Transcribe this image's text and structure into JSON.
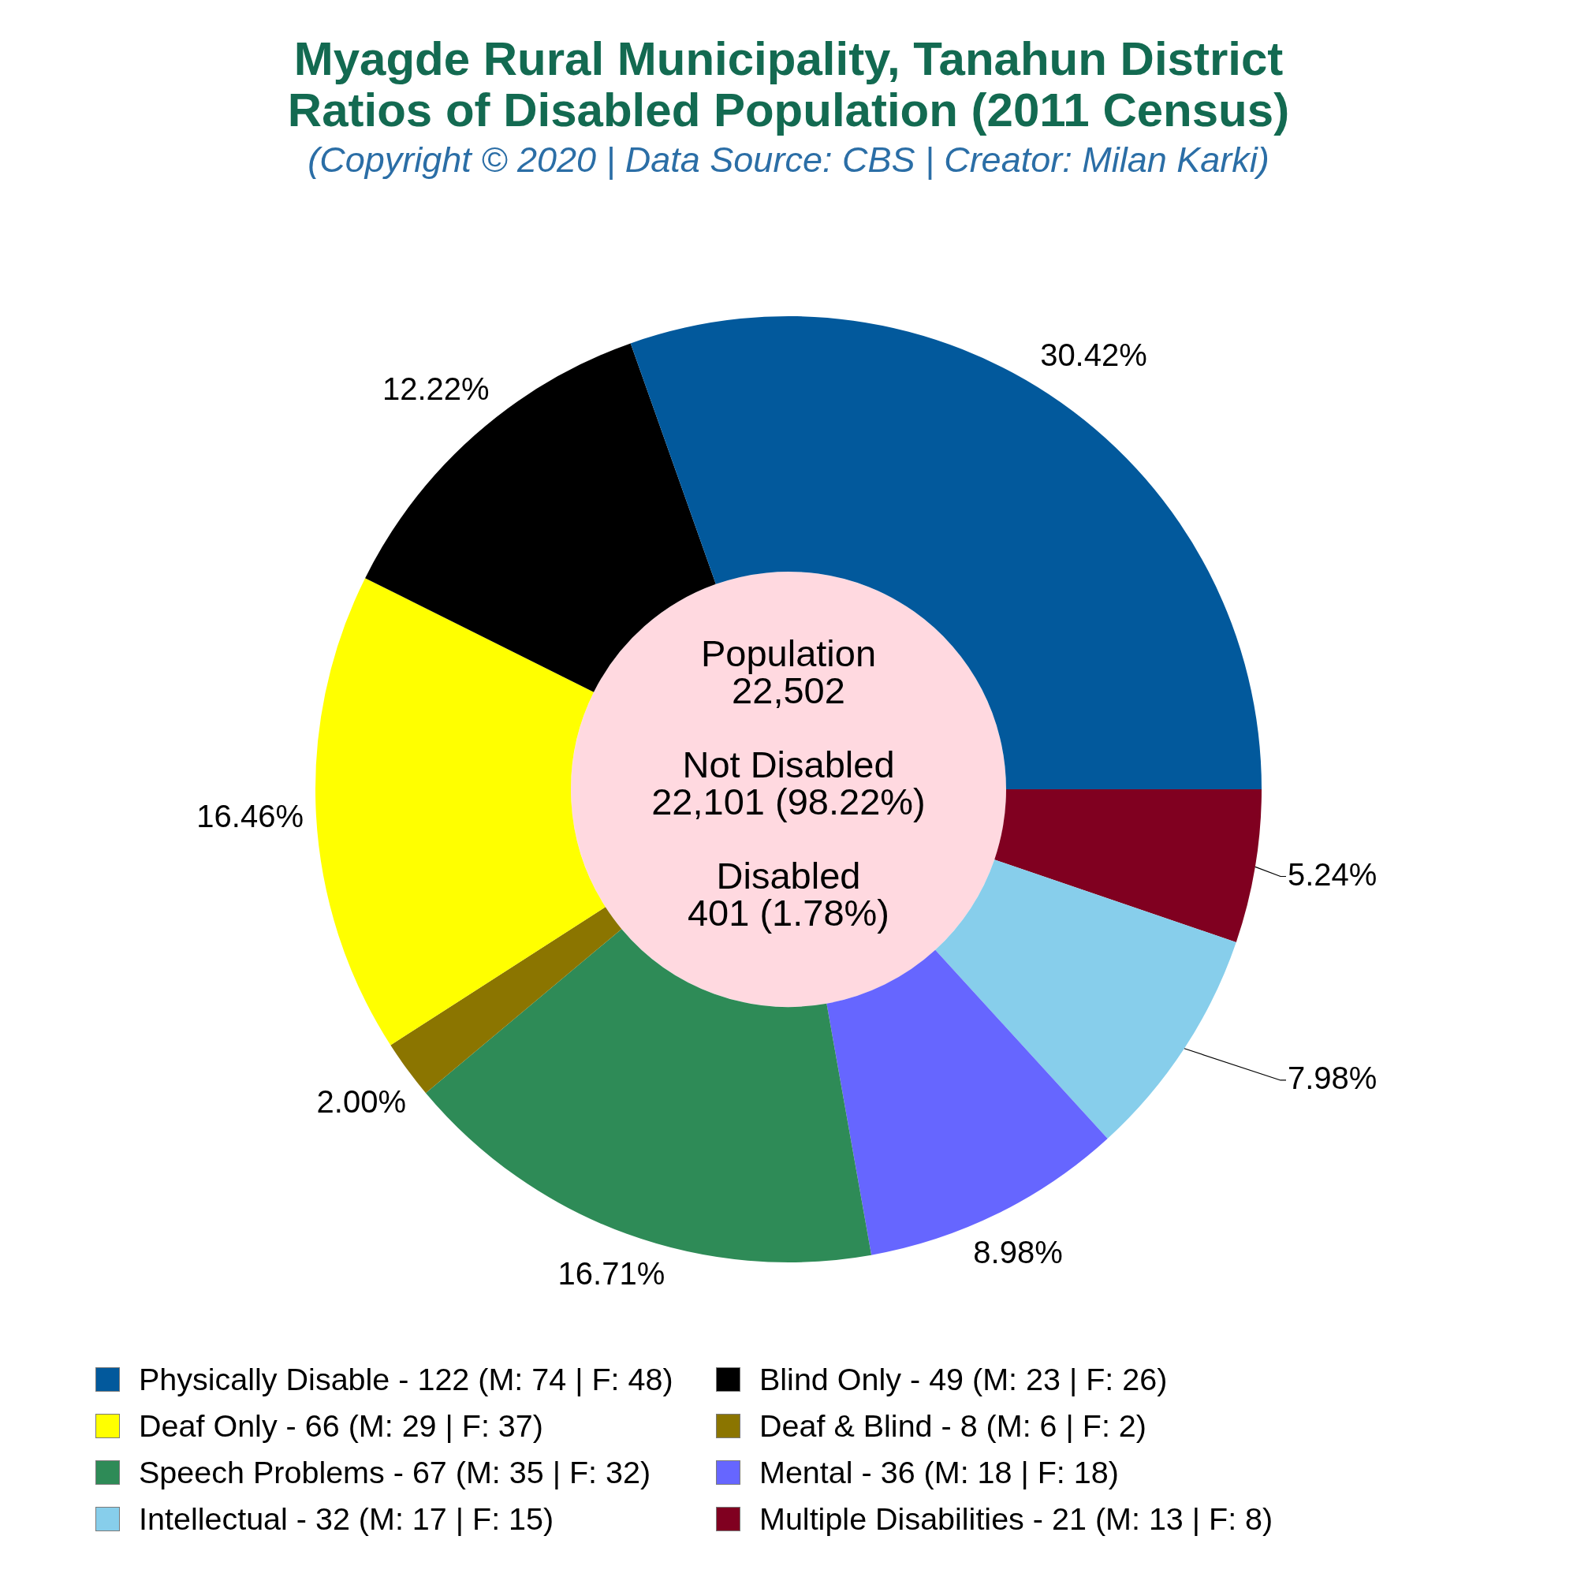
{
  "chart_data": {
    "type": "donut",
    "title": "Myagde Rural Municipality, Tanahun District\nRatios of Disabled Population (2011 Census)",
    "subtitle": "(Copyright © 2020 | Data Source: CBS | Creator: Milan Karki)",
    "categories": [
      "Physically Disable - 122 (M: 74 | F: 48)",
      "Blind Only - 49 (M: 23 | F: 26)",
      "Deaf Only - 66 (M: 29 | F: 37)",
      "Deaf & Blind - 8 (M: 6 | F: 2)",
      "Speech Problems - 67 (M: 35 | F: 32)",
      "Mental - 36 (M: 18 | F: 18)",
      "Intellectual - 32 (M: 17 | F: 15)",
      "Multiple Disabilities - 21 (M: 13 | F: 8)"
    ],
    "values": [
      30.42,
      12.22,
      16.46,
      2.0,
      16.71,
      8.98,
      7.98,
      5.24
    ],
    "colors": [
      "#02599c",
      "#000000",
      "#ffff00",
      "#8b7500",
      "#2e8b57",
      "#6666ff",
      "#87ceeb",
      "#800020"
    ],
    "value_labels": [
      "30.42%",
      "12.22%",
      "16.46%",
      "2.00%",
      "16.71%",
      "8.98%",
      "7.98%",
      "5.24%"
    ],
    "annotations": [
      "Population\n22,502",
      "Not Disabled\n22,101 (98.22%)",
      "Disabled\n401 (1.78%)"
    ],
    "legend": "bottom"
  }
}
